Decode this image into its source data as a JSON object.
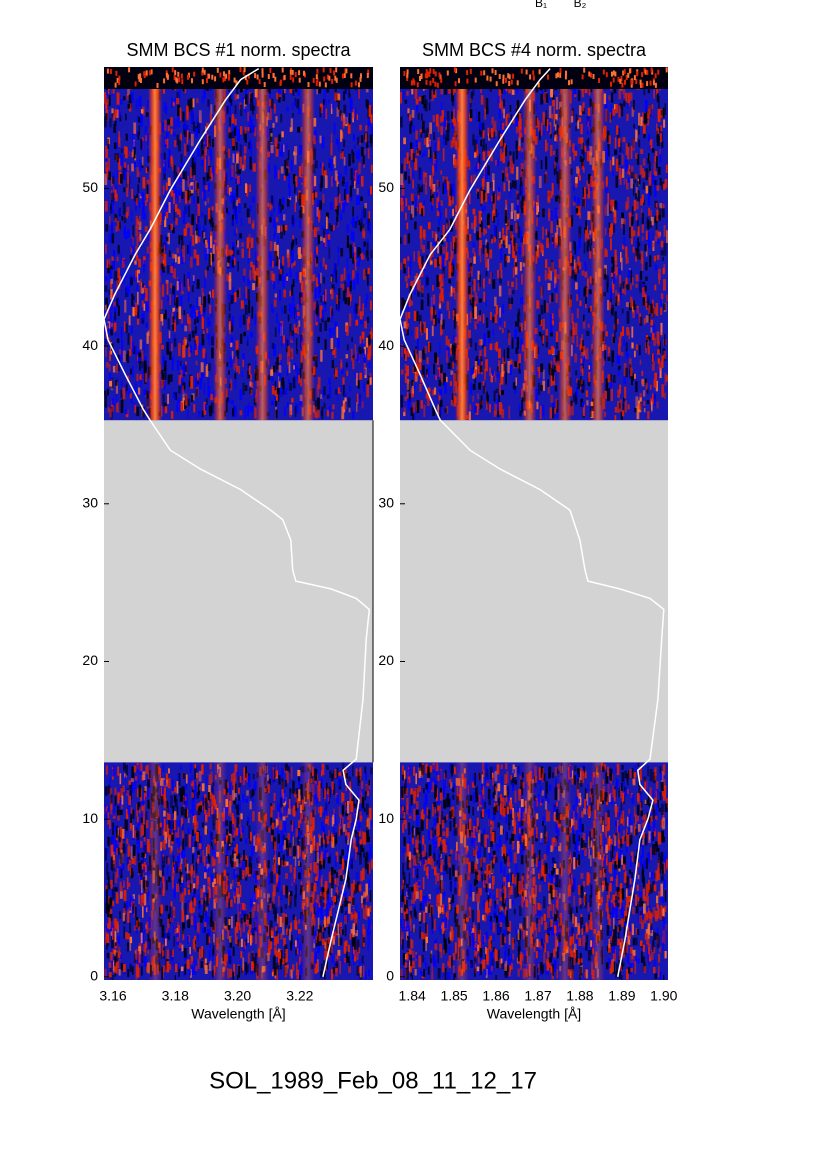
{
  "header_labels": [
    "B₁",
    "B₂"
  ],
  "caption": "SOL_1989_Feb_08_11_12_17",
  "chart_data": [
    {
      "type": "spectrogram",
      "title": "SMM BCS #1 norm. spectra",
      "xlabel": "Wavelength [Å]",
      "xlim": [
        3.1571,
        3.2435
      ],
      "ylim": [
        -0.2,
        57.7
      ],
      "xticks": [
        3.16,
        3.18,
        {
          "value": 3.2,
          "label": "3.20"
        },
        3.22
      ],
      "yticks": [
        0,
        10,
        20,
        30,
        40,
        50
      ],
      "gap": [
        13.6,
        35.3
      ],
      "line_wavelengths": [
        3.1735,
        3.1944,
        3.208,
        3.2226
      ],
      "colors": [
        "#1818b0",
        "#0000ff",
        "#000010",
        "#e02000",
        "#ff7030"
      ],
      "curve": {
        "color": "#ffffff",
        "x": [
          3.2274,
          3.23,
          3.2348,
          3.2365,
          3.2381,
          3.239,
          3.2348,
          3.2339,
          3.2381,
          3.2403,
          3.2413,
          3.2423,
          3.2381,
          3.23,
          3.2187,
          3.2177,
          3.2171,
          3.2145,
          3.2106,
          3.201,
          3.1881,
          3.1784,
          3.1719,
          3.1697,
          3.1639,
          3.1584,
          3.1571,
          3.1606,
          3.1671,
          3.1719,
          3.1784,
          3.1881,
          3.1961,
          3.201,
          3.2068
        ],
        "y": [
          0,
          2.3,
          6.2,
          8.7,
          10.0,
          11.2,
          12.2,
          13.1,
          13.8,
          17.6,
          21.4,
          23.3,
          24.0,
          24.6,
          25.1,
          25.8,
          27.7,
          29.0,
          29.6,
          30.9,
          32.2,
          33.4,
          35.3,
          36.0,
          38.2,
          40.4,
          41.7,
          43.3,
          45.8,
          47.4,
          49.9,
          53.1,
          55.6,
          56.9,
          57.6
        ]
      }
    },
    {
      "type": "spectrogram",
      "title": "SMM BCS #4 norm. spectra",
      "xlabel": "Wavelength [Å]",
      "xlim": [
        1.8371,
        1.901
      ],
      "ylim": [
        -0.2,
        57.7
      ],
      "xticks": [
        1.84,
        1.85,
        1.86,
        1.87,
        1.88,
        1.89,
        {
          "value": 1.9,
          "label": "1.90"
        }
      ],
      "yticks": [
        0,
        10,
        20,
        30,
        40,
        50
      ],
      "gap": [
        13.6,
        35.3
      ],
      "line_wavelengths": [
        1.8519,
        1.868,
        1.8764,
        1.8843
      ],
      "colors": [
        "#1818b0",
        "#0000ff",
        "#000010",
        "#e02000",
        "#ff7030"
      ],
      "curve": {
        "color": "#ffffff",
        "x": [
          1.889,
          1.8907,
          1.8931,
          1.8943,
          1.8962,
          1.8974,
          1.8943,
          1.8938,
          1.8967,
          1.8986,
          1.8995,
          1.9,
          1.8967,
          1.8895,
          1.8819,
          1.8812,
          1.88,
          1.8776,
          1.8705,
          1.861,
          1.8538,
          1.8467,
          1.8455,
          1.8419,
          1.8381,
          1.8371,
          1.8395,
          1.8443,
          1.849,
          1.8538,
          1.861,
          1.8669,
          1.8705,
          1.8729
        ],
        "y": [
          0,
          2.3,
          6.2,
          8.7,
          10.0,
          11.2,
          12.2,
          13.1,
          13.8,
          17.6,
          21.4,
          23.3,
          24.0,
          24.6,
          25.1,
          25.8,
          27.7,
          29.6,
          30.9,
          32.2,
          33.4,
          35.3,
          36.0,
          38.2,
          40.4,
          41.7,
          43.3,
          45.8,
          47.4,
          49.9,
          53.1,
          55.6,
          56.9,
          57.6
        ]
      }
    }
  ]
}
